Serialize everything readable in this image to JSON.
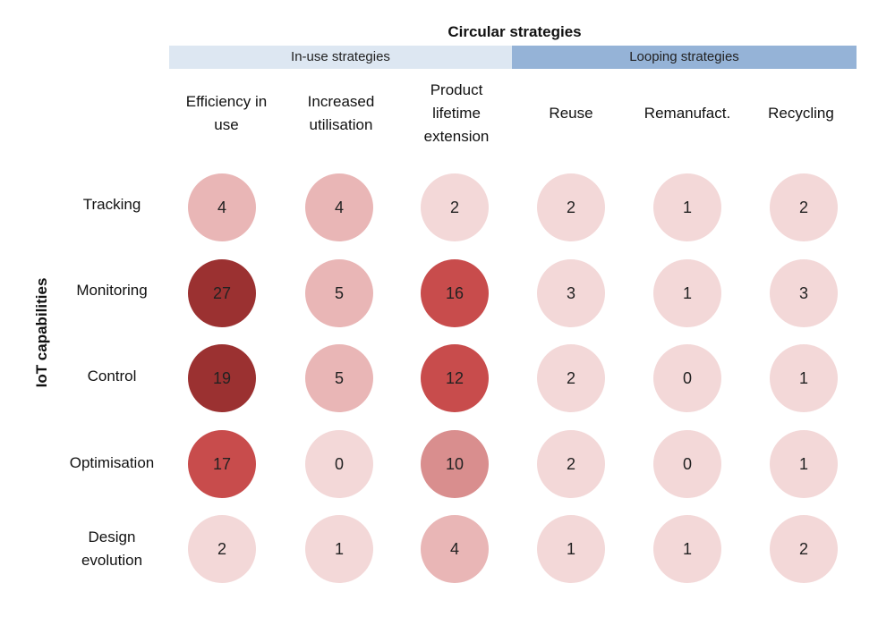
{
  "chart_data": {
    "type": "heatmap",
    "title": "Circular strategies",
    "ylabel": "IoT capabilities",
    "groups": [
      {
        "label": "In-use strategies",
        "color": "#dde7f2"
      },
      {
        "label": "Looping strategies",
        "color": "#95b3d7"
      }
    ],
    "columns": [
      {
        "line1": "Efficiency in",
        "line2": "use",
        "line3": ""
      },
      {
        "line1": "Increased",
        "line2": "utilisation",
        "line3": ""
      },
      {
        "line1": "Product",
        "line2": "lifetime",
        "line3": "extension"
      },
      {
        "line1": "Reuse",
        "line2": "",
        "line3": ""
      },
      {
        "line1": "Remanufact.",
        "line2": "",
        "line3": ""
      },
      {
        "line1": "Recycling",
        "line2": "",
        "line3": ""
      }
    ],
    "rows": [
      {
        "line1": "Tracking",
        "line2": ""
      },
      {
        "line1": "Monitoring",
        "line2": ""
      },
      {
        "line1": "Control",
        "line2": ""
      },
      {
        "line1": "Optimisation",
        "line2": ""
      },
      {
        "line1": "Design",
        "line2": "evolution"
      }
    ],
    "values": [
      [
        4,
        4,
        2,
        2,
        1,
        2
      ],
      [
        27,
        5,
        16,
        3,
        1,
        3
      ],
      [
        19,
        5,
        12,
        2,
        0,
        1
      ],
      [
        17,
        0,
        10,
        2,
        0,
        1
      ],
      [
        2,
        1,
        4,
        1,
        1,
        2
      ]
    ],
    "colors": [
      [
        "#e9b6b6",
        "#e9b6b6",
        "#f3d8d8",
        "#f3d8d8",
        "#f3d8d8",
        "#f3d8d8"
      ],
      [
        "#9b3131",
        "#e9b6b6",
        "#c84c4c",
        "#f3d8d8",
        "#f3d8d8",
        "#f3d8d8"
      ],
      [
        "#9b3131",
        "#e9b6b6",
        "#c84c4c",
        "#f3d8d8",
        "#f3d8d8",
        "#f3d8d8"
      ],
      [
        "#c84c4c",
        "#f3d8d8",
        "#d98e8e",
        "#f3d8d8",
        "#f3d8d8",
        "#f3d8d8"
      ],
      [
        "#f3d8d8",
        "#f3d8d8",
        "#e9b6b6",
        "#f3d8d8",
        "#f3d8d8",
        "#f3d8d8"
      ]
    ]
  }
}
